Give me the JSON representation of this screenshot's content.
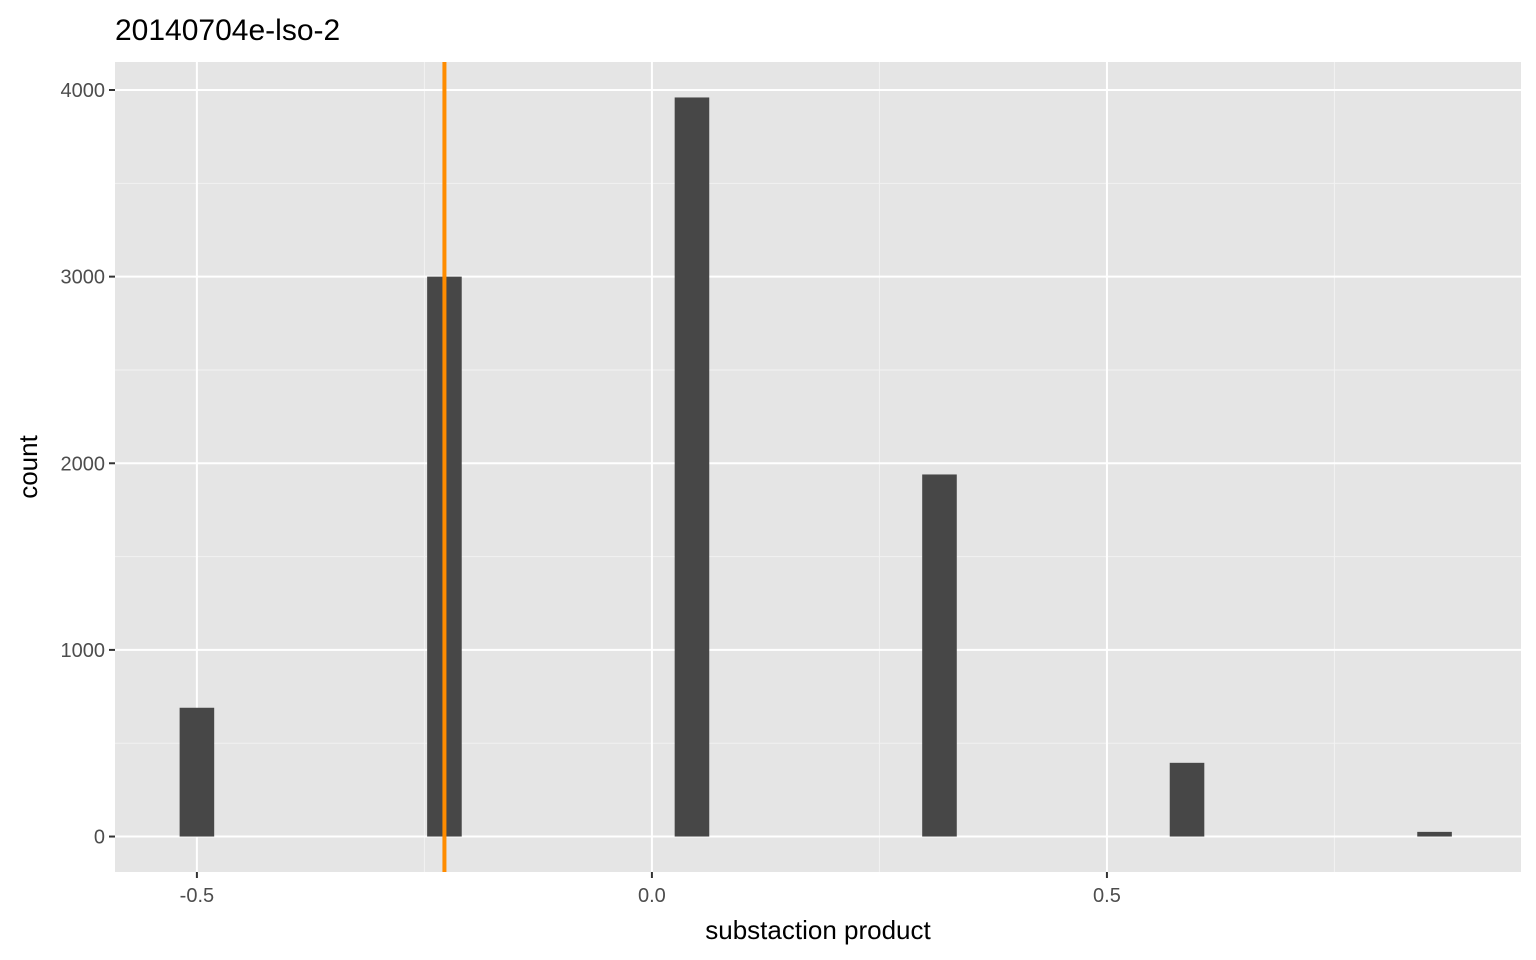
{
  "chart_data": {
    "type": "bar",
    "title": "20140704e-lso-2",
    "xlabel": "substaction product",
    "ylabel": "count",
    "xlim": [
      -0.59,
      0.955
    ],
    "ylim": [
      -190,
      4150
    ],
    "x_ticks": [
      -0.5,
      0.0,
      0.5
    ],
    "x_tick_labels": [
      "-0.5",
      "0.0",
      "0.5"
    ],
    "y_ticks": [
      0,
      1000,
      2000,
      3000,
      4000
    ],
    "y_tick_labels": [
      "0",
      "1000",
      "2000",
      "3000",
      "4000"
    ],
    "bin_width": 0.038,
    "bars": [
      {
        "x": -0.5,
        "count": 690
      },
      {
        "x": -0.228,
        "count": 3000
      },
      {
        "x": 0.044,
        "count": 3960
      },
      {
        "x": 0.316,
        "count": 1940
      },
      {
        "x": 0.588,
        "count": 395
      },
      {
        "x": 0.86,
        "count": 25
      }
    ],
    "vline": {
      "x": -0.228,
      "color": "#ff8c00"
    },
    "bar_color": "#474747",
    "panel_color": "#e5e5e5",
    "grid": true
  }
}
